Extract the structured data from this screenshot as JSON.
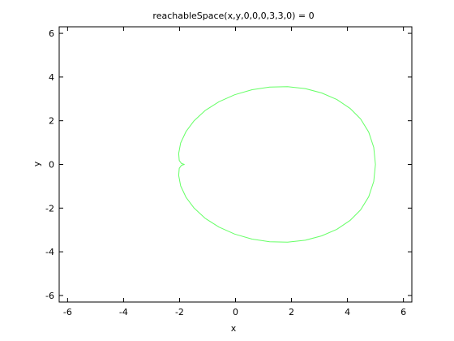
{
  "chart_data": {
    "type": "line",
    "title": "reachableSpace(x,y,0,0,0,3,3,0) = 0",
    "xlabel": "x",
    "ylabel": "y",
    "xlim": [
      -6.3,
      6.3
    ],
    "ylim": [
      -6.3,
      6.3
    ],
    "xticks": [
      -6,
      -4,
      -2,
      0,
      2,
      4,
      6
    ],
    "yticks": [
      -6,
      -4,
      -2,
      0,
      2,
      4,
      6
    ],
    "xtick_labels": [
      "-6",
      "-4",
      "-2",
      "0",
      "2",
      "4",
      "6"
    ],
    "ytick_labels": [
      "-6",
      "-4",
      "-2",
      "0",
      "2",
      "4",
      "6"
    ],
    "grid": false,
    "series": [
      {
        "color": "#66ff66",
        "x": [
          5.0,
          4.94,
          4.76,
          4.47,
          4.09,
          3.62,
          3.08,
          2.49,
          1.86,
          1.22,
          0.59,
          -0.03,
          -0.59,
          -1.08,
          -1.48,
          -1.77,
          -1.96,
          -2.03,
          -2.01,
          -1.93,
          -1.83,
          -1.93,
          -2.01,
          -2.03,
          -1.96,
          -1.77,
          -1.48,
          -1.08,
          -0.59,
          -0.03,
          0.59,
          1.22,
          1.86,
          2.49,
          3.08,
          3.62,
          4.09,
          4.47,
          4.76,
          4.94,
          5.0
        ],
        "y": [
          0.0,
          0.78,
          1.48,
          2.08,
          2.57,
          2.97,
          3.27,
          3.47,
          3.56,
          3.54,
          3.42,
          3.19,
          2.87,
          2.47,
          2.0,
          1.5,
          0.98,
          0.5,
          0.18,
          0.04,
          0.0,
          -0.04,
          -0.18,
          -0.5,
          -0.98,
          -1.5,
          -2.0,
          -2.47,
          -2.87,
          -3.19,
          -3.42,
          -3.54,
          -3.56,
          -3.47,
          -3.27,
          -2.97,
          -2.57,
          -2.08,
          -1.48,
          -0.78,
          0.0
        ]
      }
    ]
  }
}
